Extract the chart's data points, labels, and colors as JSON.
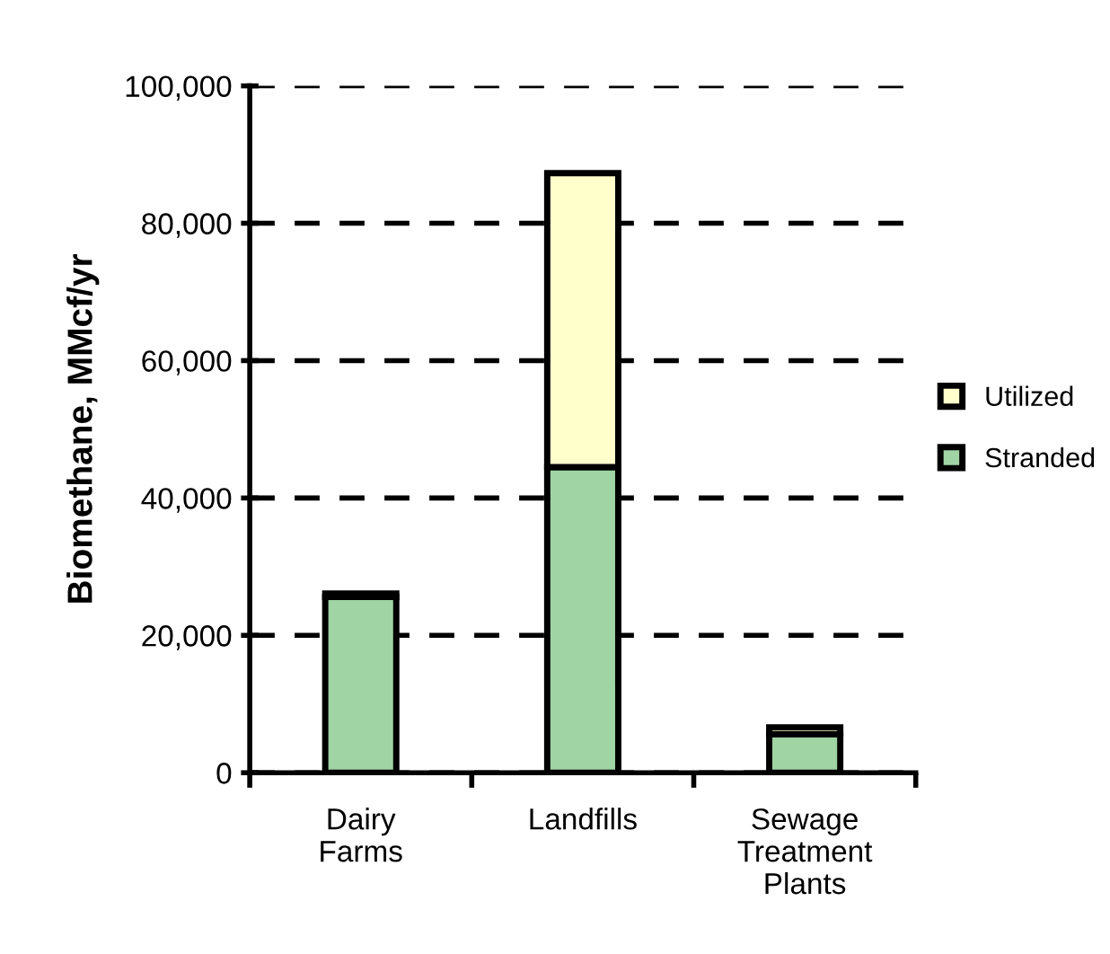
{
  "chart_data": {
    "type": "bar",
    "ylabel": "Biomethane, MMcf/yr",
    "categories": [
      "Dairy\nFarms",
      "Landfills",
      "Sewage\nTreatment\nPlants"
    ],
    "stacked": true,
    "series": [
      {
        "name": "Stranded",
        "color": "#a0d4a4",
        "values": [
          25600,
          44500,
          5600
        ]
      },
      {
        "name": "Utilized",
        "color": "#ffffcc",
        "values": [
          500,
          42800,
          1000
        ]
      }
    ],
    "ylim": [
      0,
      100000
    ],
    "yticks": [
      {
        "value": 0,
        "label": "0"
      },
      {
        "value": 20000,
        "label": "20,000"
      },
      {
        "value": 40000,
        "label": "40,000"
      },
      {
        "value": 60000,
        "label": "60,000"
      },
      {
        "value": 80000,
        "label": "80,000"
      },
      {
        "value": 100000,
        "label": "100,000"
      }
    ],
    "grid": "y",
    "legend": "right"
  }
}
